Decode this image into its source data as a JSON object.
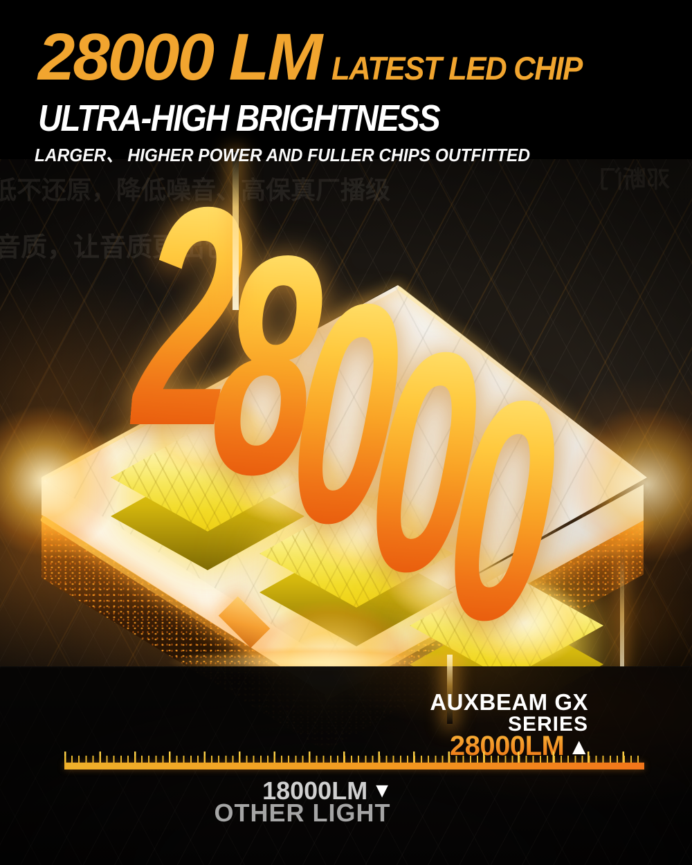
{
  "header": {
    "headline": "28000 LM",
    "headline_suffix": "LATEST LED CHIP",
    "subheadline": "ULTRA-HIGH BRIGHTNESS",
    "tagline": "LARGER、 HIGHER POWER AND FULLER CHIPS OUTFITTED"
  },
  "scene": {
    "lumen_digits": [
      "2",
      "8",
      "0",
      "0",
      "0"
    ],
    "watermark_left_line1": "低不还原，降低噪音、高保真厂播级",
    "watermark_left_line2": "音质，让音质更出色",
    "watermark_right": "邓断门"
  },
  "comparison": {
    "brand_line1": "AUXBEAM GX",
    "brand_line2": "SERIES",
    "brand_value": "28000LM",
    "up_marker": "▲",
    "other_value": "18000LM",
    "down_marker": "▼",
    "other_label": "OTHER LIGHT"
  },
  "colors": {
    "accent_orange": "#F1A52F",
    "value_orange": "#ED7012",
    "ruler_left": "#F0B02A",
    "ruler_right": "#F2751A",
    "digit_gradient_top": "#FFDD66",
    "digit_gradient_bottom": "#E85A0C"
  }
}
